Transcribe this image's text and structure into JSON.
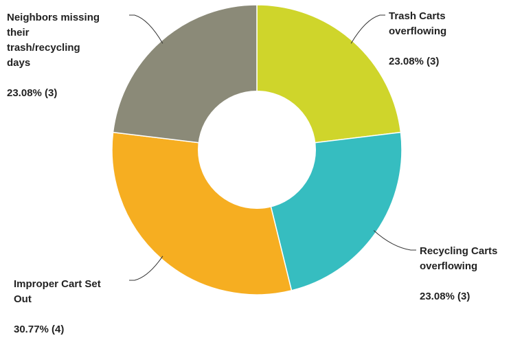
{
  "chart_data": {
    "type": "pie",
    "donut": true,
    "slices": [
      {
        "label_lines": [
          "Trash Carts",
          "overflowing"
        ],
        "value": 3,
        "percent_label": "23.08% (3)",
        "color": "#cfd52b"
      },
      {
        "label_lines": [
          "Recycling Carts",
          "overflowing"
        ],
        "value": 3,
        "percent_label": "23.08% (3)",
        "color": "#36bdc0"
      },
      {
        "label_lines": [
          "Improper Cart Set",
          "Out"
        ],
        "value": 4,
        "percent_label": "30.77% (4)",
        "color": "#f6ae21"
      },
      {
        "label_lines": [
          "Neighbors missing",
          "their",
          "trash/recycling",
          "days"
        ],
        "value": 3,
        "percent_label": "23.08% (3)",
        "color": "#8b8a78"
      }
    ]
  }
}
